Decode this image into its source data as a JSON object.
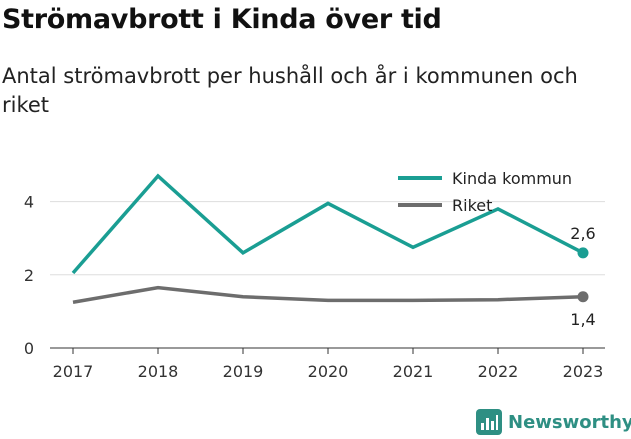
{
  "title": "Strömavbrott i Kinda över tid",
  "subtitle": "Antal strömavbrott per hushåll och år i kommunen och riket",
  "brand": {
    "name": "Newsworthy",
    "icon": "bar-chart-logo-icon"
  },
  "colors": {
    "kinda": "#1a9e93",
    "riket": "#6d6d6d",
    "brand": "#2e8f83"
  },
  "chart_data": {
    "type": "line",
    "x": [
      "2017",
      "2018",
      "2019",
      "2020",
      "2021",
      "2022",
      "2023"
    ],
    "ylim": [
      0,
      5
    ],
    "yticks": [
      "0",
      "2",
      "4"
    ],
    "ytick_values": [
      0,
      2,
      4
    ],
    "grid": true,
    "legend_position": "top-right",
    "series": [
      {
        "name": "Kinda kommun",
        "values": [
          2.05,
          4.7,
          2.6,
          3.95,
          2.75,
          3.8,
          2.6
        ],
        "end_label": "2,6"
      },
      {
        "name": "Riket",
        "values": [
          1.25,
          1.65,
          1.4,
          1.3,
          1.3,
          1.32,
          1.4
        ],
        "end_label": "1,4"
      }
    ]
  }
}
